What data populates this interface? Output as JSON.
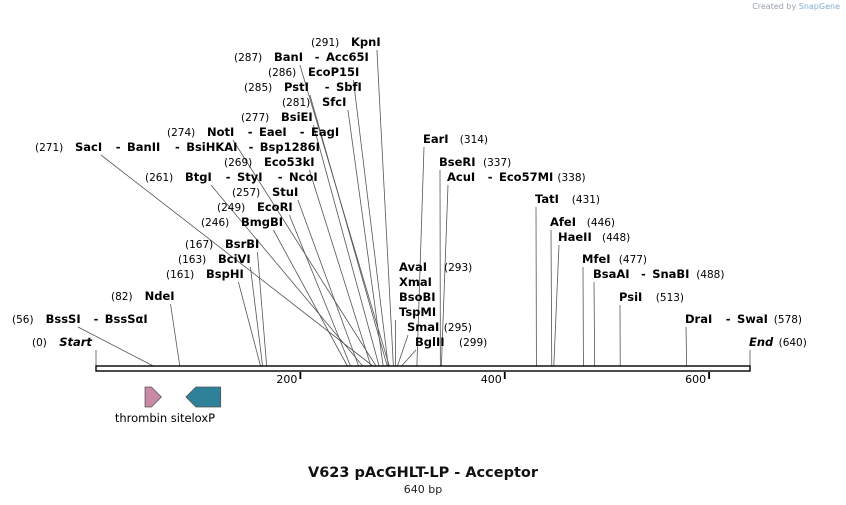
{
  "credit": {
    "prefix": "Created by",
    "brand": "SnapGene"
  },
  "map": {
    "title": "V623 pAcGHLT-LP - Acceptor",
    "length_label": "640 bp",
    "length": 640,
    "start_label": "Start",
    "end_label": "End",
    "ticks": [
      200,
      400,
      600
    ]
  },
  "sites": [
    {
      "pos": 0,
      "label": "(0)",
      "names": [
        "Start"
      ],
      "italic": true
    },
    {
      "pos": 56,
      "label": "(56)",
      "names": [
        "BssSI",
        "BssSαI"
      ]
    },
    {
      "pos": 82,
      "label": "(82)",
      "names": [
        "NdeI"
      ]
    },
    {
      "pos": 161,
      "label": "(161)",
      "names": [
        "BspHI"
      ]
    },
    {
      "pos": 163,
      "label": "(163)",
      "names": [
        "BciVI"
      ]
    },
    {
      "pos": 167,
      "label": "(167)",
      "names": [
        "BsrBI"
      ]
    },
    {
      "pos": 246,
      "label": "(246)",
      "names": [
        "BmgBI"
      ]
    },
    {
      "pos": 249,
      "label": "(249)",
      "names": [
        "EcoRI"
      ]
    },
    {
      "pos": 257,
      "label": "(257)",
      "names": [
        "StuI"
      ]
    },
    {
      "pos": 261,
      "label": "(261)",
      "names": [
        "BtgI",
        "StyI",
        "NcoI"
      ]
    },
    {
      "pos": 269,
      "label": "(269)",
      "names": [
        "Eco53kI"
      ]
    },
    {
      "pos": 271,
      "label": "(271)",
      "names": [
        "SacI",
        "BanII",
        "BsiHKAI",
        "Bsp1286I"
      ]
    },
    {
      "pos": 274,
      "label": "(274)",
      "names": [
        "NotI",
        "EaeI",
        "EagI"
      ]
    },
    {
      "pos": 277,
      "label": "(277)",
      "names": [
        "BsiEI"
      ]
    },
    {
      "pos": 281,
      "label": "(281)",
      "names": [
        "SfcI"
      ]
    },
    {
      "pos": 285,
      "label": "(285)",
      "names": [
        "PstI",
        "SbfI"
      ]
    },
    {
      "pos": 286,
      "label": "(286)",
      "names": [
        "EcoP15I"
      ]
    },
    {
      "pos": 287,
      "label": "(287)",
      "names": [
        "BanI",
        "Acc65I"
      ]
    },
    {
      "pos": 291,
      "label": "(291)",
      "names": [
        "KpnI"
      ]
    },
    {
      "pos": 293,
      "label": "(293)",
      "names": [
        "AvaI",
        "XmaI",
        "BsoBI",
        "TspMI"
      ]
    },
    {
      "pos": 295,
      "label": "(295)",
      "names": [
        "SmaI"
      ]
    },
    {
      "pos": 299,
      "label": "(299)",
      "names": [
        "BglII"
      ]
    },
    {
      "pos": 314,
      "label": "(314)",
      "names": [
        "EarI"
      ]
    },
    {
      "pos": 337,
      "label": "(337)",
      "names": [
        "BseRI"
      ]
    },
    {
      "pos": 338,
      "label": "(338)",
      "names": [
        "AcuI",
        "Eco57MI"
      ]
    },
    {
      "pos": 431,
      "label": "(431)",
      "names": [
        "TatI"
      ]
    },
    {
      "pos": 446,
      "label": "(446)",
      "names": [
        "AfeI"
      ]
    },
    {
      "pos": 448,
      "label": "(448)",
      "names": [
        "HaeII"
      ]
    },
    {
      "pos": 477,
      "label": "(477)",
      "names": [
        "MfeI"
      ]
    },
    {
      "pos": 488,
      "label": "(488)",
      "names": [
        "BsaAI",
        "SnaBI"
      ]
    },
    {
      "pos": 513,
      "label": "(513)",
      "names": [
        "PsiI"
      ]
    },
    {
      "pos": 578,
      "label": "(578)",
      "names": [
        "DraI",
        "SwaI"
      ]
    },
    {
      "pos": 640,
      "label": "(640)",
      "names": [
        "End"
      ],
      "italic": true
    }
  ],
  "features": [
    {
      "name": "thrombin site",
      "start": 48,
      "end": 64,
      "direction": "forward",
      "color": "#c98aa8"
    },
    {
      "name": "loxP",
      "start": 88,
      "end": 122,
      "direction": "reverse",
      "color": "#2e8199"
    }
  ]
}
